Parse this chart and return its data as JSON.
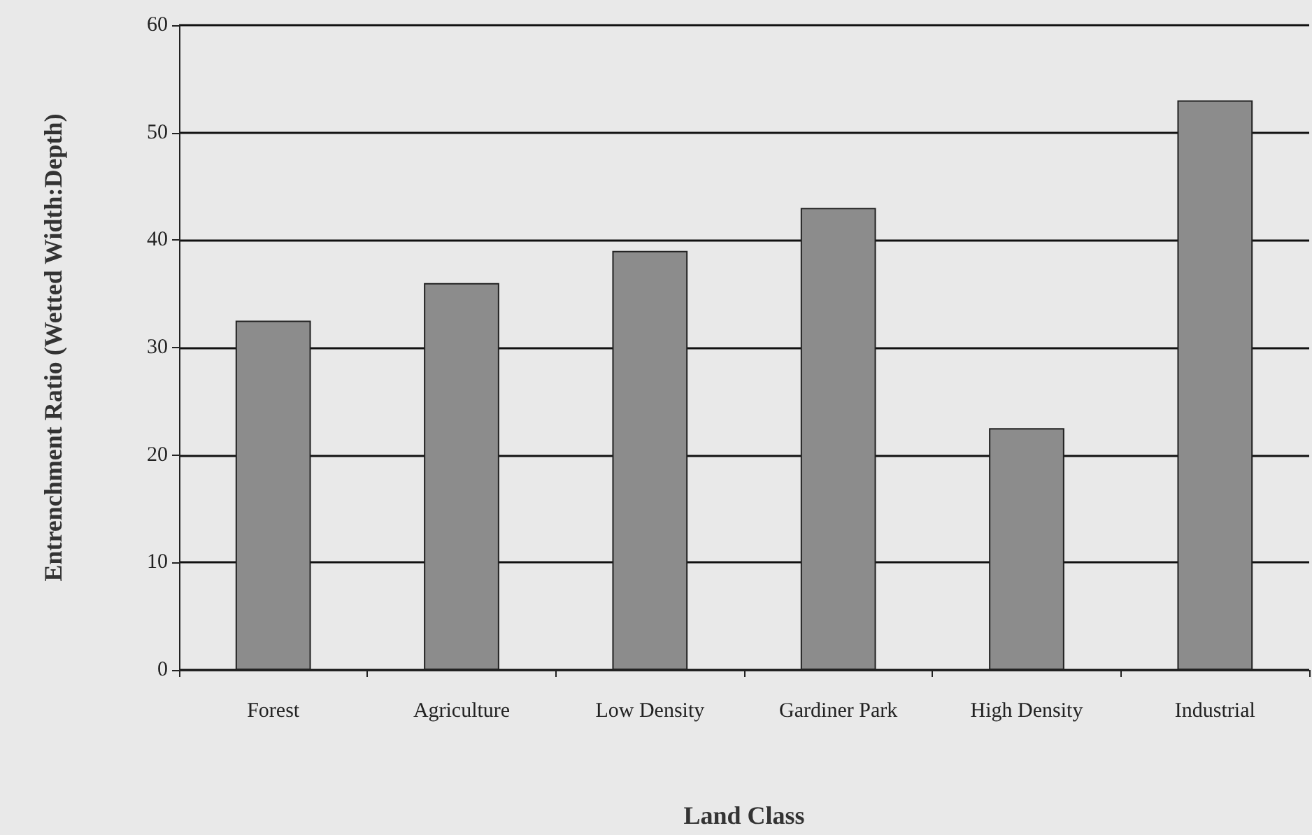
{
  "chart_data": {
    "type": "bar",
    "xlabel": "Land Class",
    "ylabel": "Entrenchment Ratio (Wetted Width:Depth)",
    "categories": [
      "Forest",
      "Agriculture",
      "Low Density",
      "Gardiner Park",
      "High Density",
      "Industrial"
    ],
    "values": [
      32.5,
      36,
      39,
      43,
      22.5,
      53
    ],
    "color": "#8c8c8c",
    "ylim": [
      0,
      60
    ],
    "yticks": [
      0,
      10,
      20,
      30,
      40,
      50,
      60
    ],
    "grid": "y"
  }
}
